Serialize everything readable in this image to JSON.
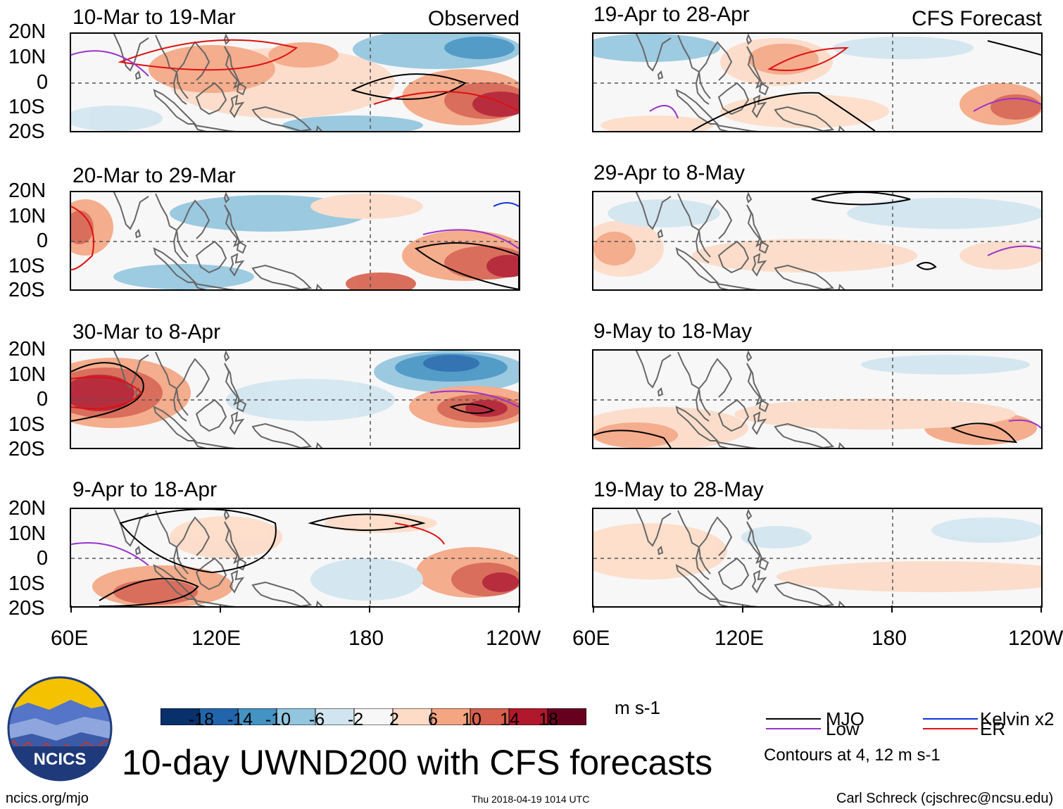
{
  "headers": {
    "observed": "Observed",
    "forecast": "CFS Forecast"
  },
  "panels": {
    "observed": [
      {
        "title": "10-Mar to 19-Mar"
      },
      {
        "title": "20-Mar to 29-Mar"
      },
      {
        "title": "30-Mar to 8-Apr"
      },
      {
        "title": "9-Apr to 18-Apr"
      }
    ],
    "forecast": [
      {
        "title": "19-Apr to 28-Apr"
      },
      {
        "title": "29-Apr to 8-May"
      },
      {
        "title": "9-May to 18-May"
      },
      {
        "title": "19-May to 28-May"
      }
    ]
  },
  "lat_labels": [
    "20N",
    "10N",
    "0",
    "10S",
    "20S"
  ],
  "lon_labels": [
    "60E",
    "120E",
    "180",
    "120W"
  ],
  "colorbar": {
    "colors": [
      "#08306b",
      "#2166ac",
      "#4393c3",
      "#92c5de",
      "#d1e5f0",
      "#f7f7f7",
      "#fddbc7",
      "#f4a582",
      "#d6604d",
      "#b2182b",
      "#67001f"
    ],
    "labels": [
      "-18",
      "-14",
      "-10",
      "-6",
      "-2",
      "2",
      "6",
      "10",
      "14",
      "18"
    ],
    "units": "m s-1"
  },
  "legend": {
    "mjo": {
      "label": "MJO",
      "color": "#000000"
    },
    "low": {
      "label": "Low",
      "color": "#9933cc"
    },
    "kelvin": {
      "label": "Kelvin x2",
      "color": "#1133dd"
    },
    "er": {
      "label": "ER",
      "color": "#dd1111"
    },
    "note": "Contours at 4, 12 m s-1"
  },
  "logo": {
    "text": "NCICS"
  },
  "main_title": "10-day UWND200 with CFS forecasts",
  "footer": {
    "url": "ncics.org/mjo",
    "timestamp": "Thu 2018-04-19 1014 UTC",
    "credit": "Carl Schreck (cjschrec@ncsu.edu)"
  }
}
